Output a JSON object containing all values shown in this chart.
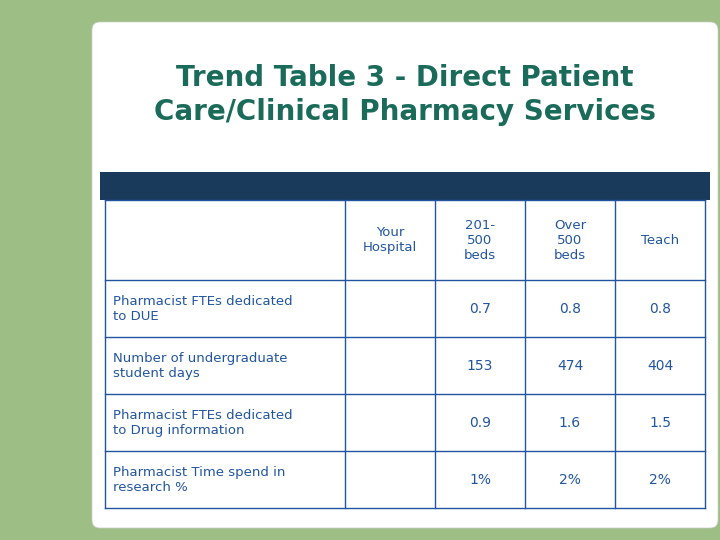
{
  "title_line1": "Trend Table 3 - Direct Patient",
  "title_line2": "Care/Clinical Pharmacy Services",
  "title_color": "#1b6b5a",
  "title_fontsize": 20,
  "title_bold": true,
  "bg_color": "#9dbf85",
  "green_rect_color": "#9dbf85",
  "dark_blue_bar_color": "#1a3a5c",
  "table_border_color": "#2255a0",
  "table_text_color": "#2255a0",
  "col_headers": [
    "Your\nHospital",
    "201-\n500\nbeds",
    "Over\n500\nbeds",
    "Teach"
  ],
  "row_labels": [
    "Pharmacist FTEs dedicated\nto DUE",
    "Number of undergraduate\nstudent days",
    "Pharmacist FTEs dedicated\nto Drug information",
    "Pharmacist Time spend in\nresearch %"
  ],
  "table_data": [
    [
      "",
      "0.7",
      "0.8",
      "0.8"
    ],
    [
      "",
      "153",
      "474",
      "404"
    ],
    [
      "",
      "0.9",
      "1.6",
      "1.5"
    ],
    [
      "",
      "1%",
      "2%",
      "2%"
    ]
  ]
}
